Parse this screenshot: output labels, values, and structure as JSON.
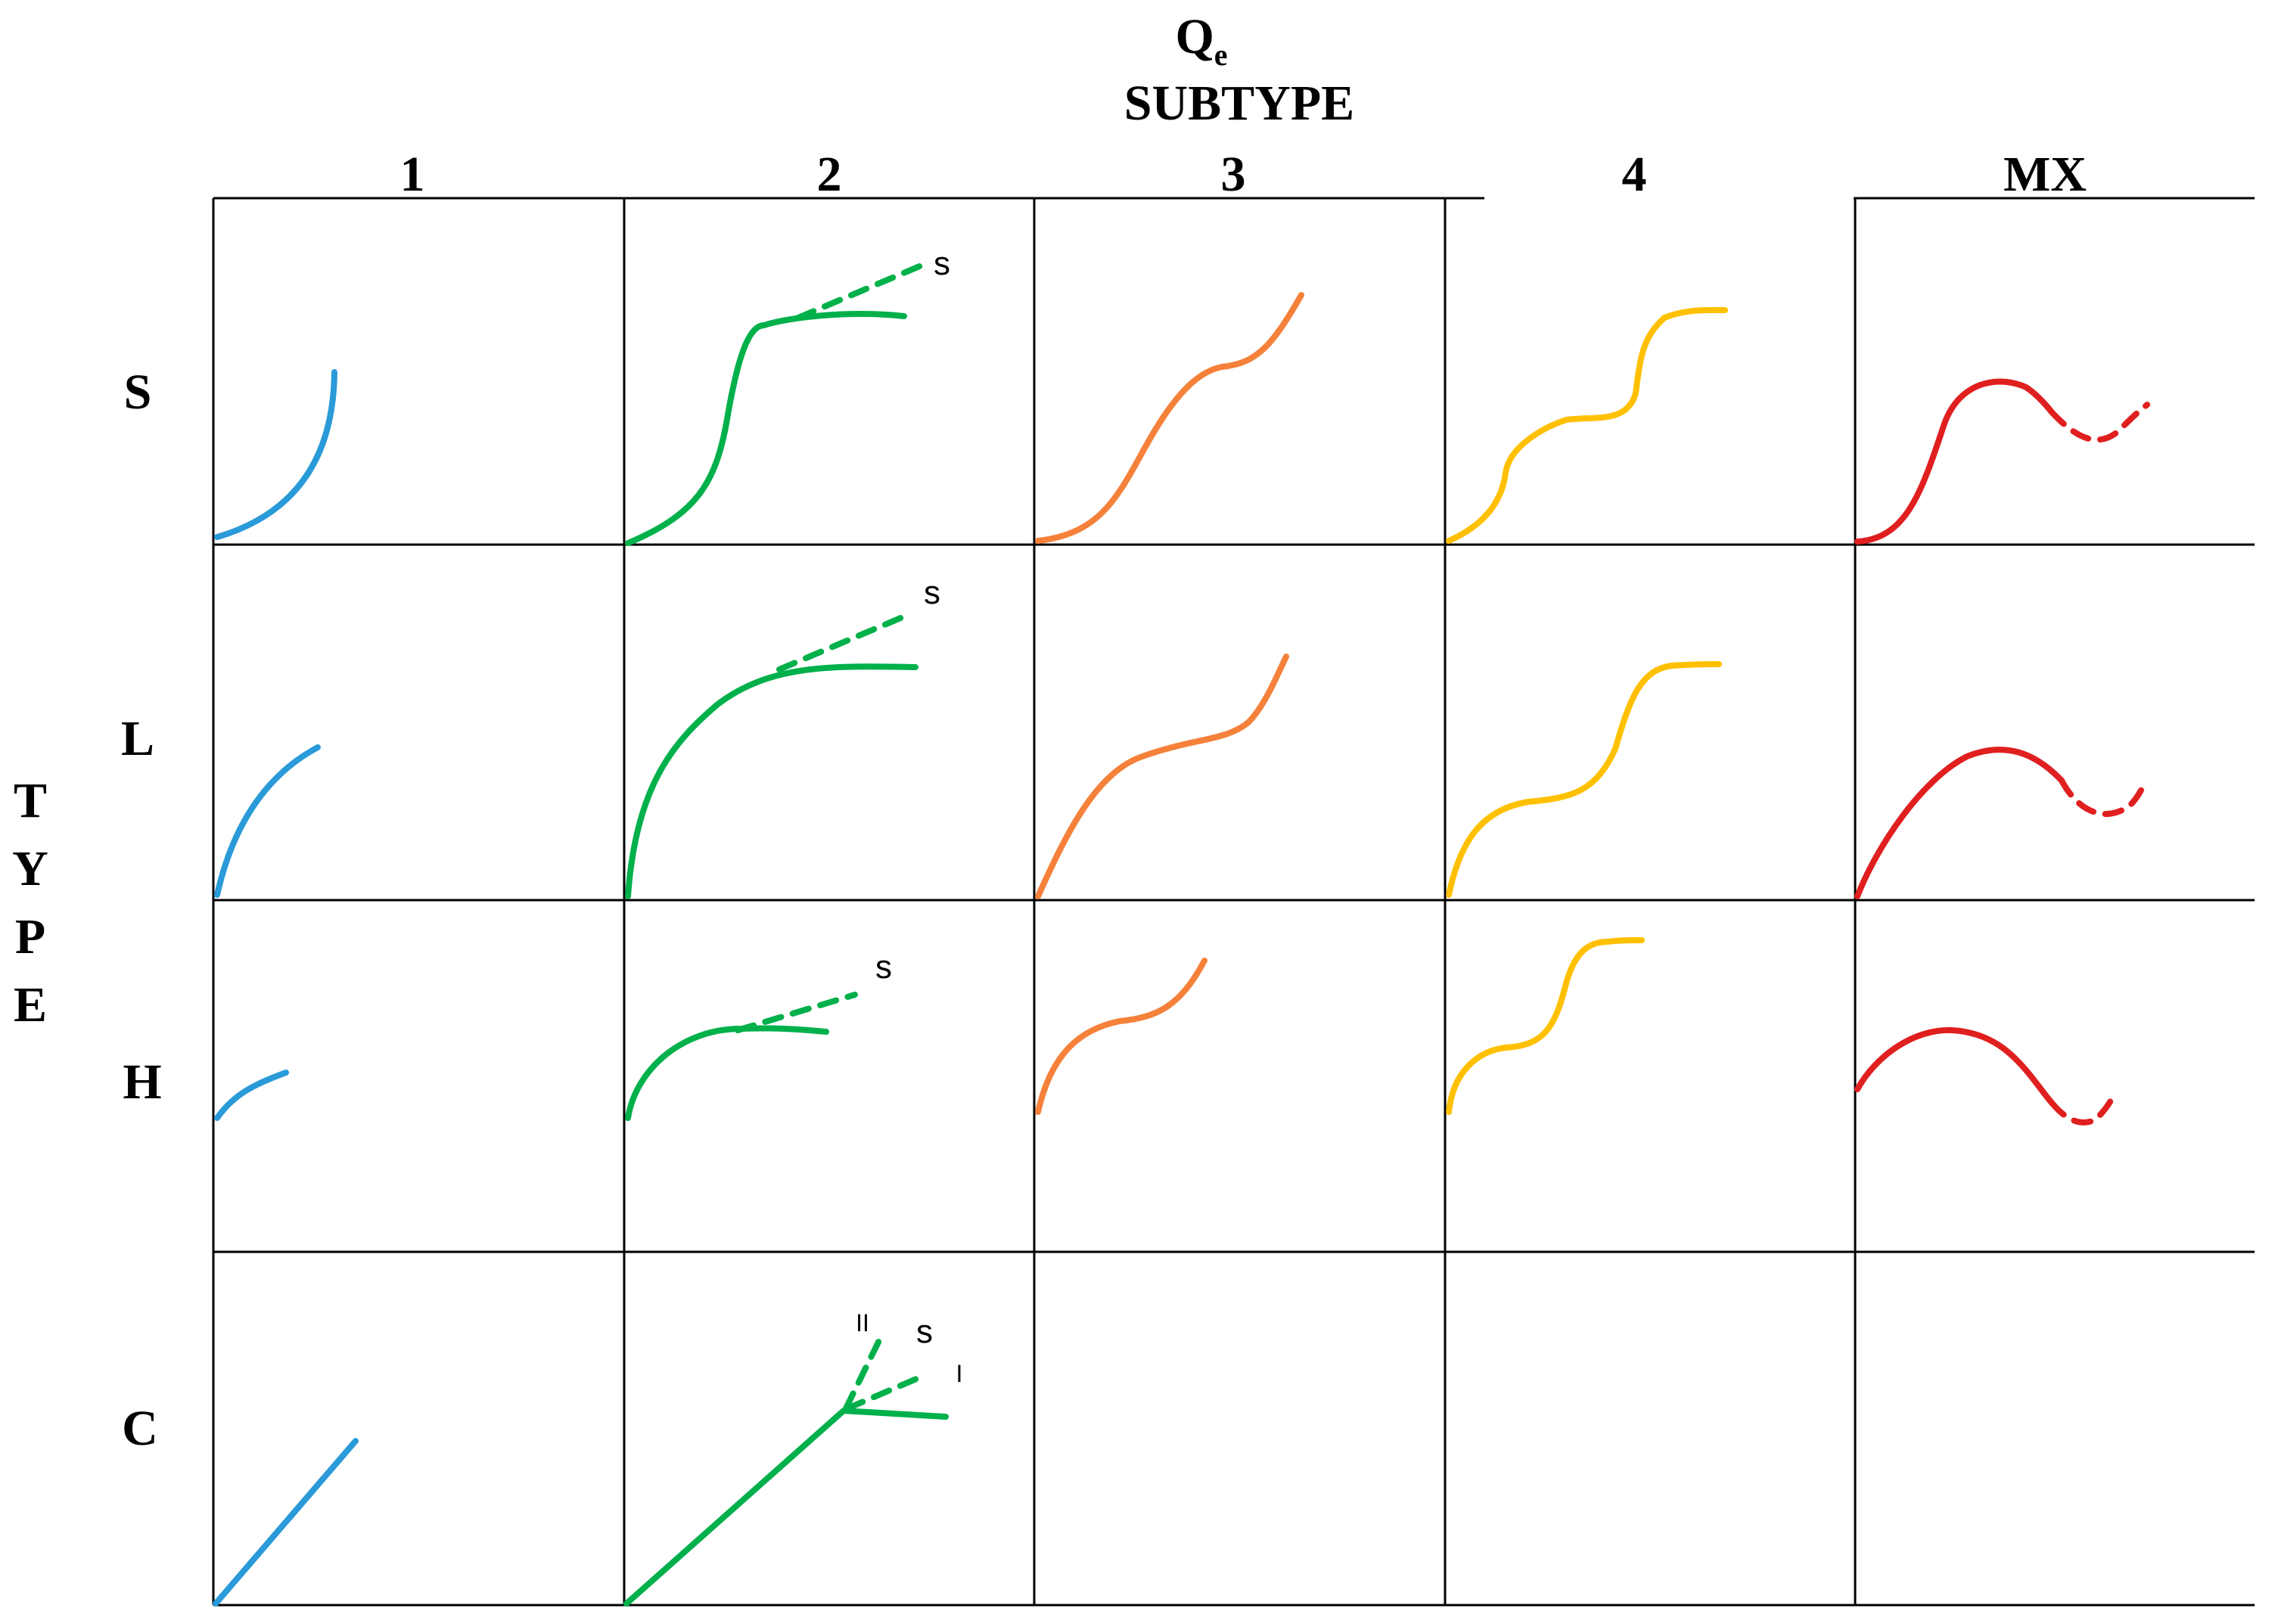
{
  "title": {
    "main": "Q",
    "subscript": "e",
    "subtitle": "SUBTYPE"
  },
  "row_axis_label": [
    "T",
    "Y",
    "P",
    "E"
  ],
  "columns": [
    "1",
    "2",
    "3",
    "4",
    "MX"
  ],
  "rows": [
    "S",
    "L",
    "H",
    "C"
  ],
  "curve_labels": {
    "s": "s",
    "roman_one": "I",
    "roman_two": "II"
  },
  "colors": {
    "subtype_1": "#2a9ad8",
    "subtype_2": "#00b04a",
    "subtype_3": "#f5813a",
    "subtype_4": "#ffc000",
    "subtype_mx": "#e01f1f"
  }
}
